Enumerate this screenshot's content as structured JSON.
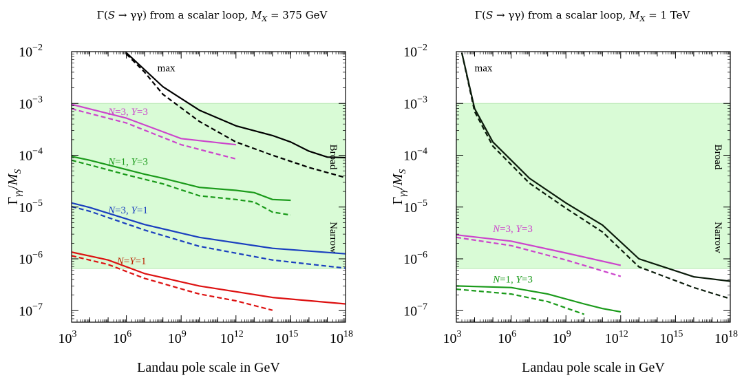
{
  "chart_data": [
    {
      "type": "line",
      "title": "Γ(S → γγ) from a scalar loop, M_X = 375 GeV",
      "title_parts": [
        "Γ(",
        "S",
        " → γγ) from a scalar loop, ",
        "M",
        "X",
        " = 375 GeV"
      ],
      "xlabel": "Landau pole scale in GeV",
      "ylabel": "Γγγ/MS",
      "x_scale": "log",
      "y_scale": "log",
      "xlim": [
        1000,
        1e+18
      ],
      "ylim": [
        6e-08,
        0.01
      ],
      "x_ticks": [
        {
          "base": "10",
          "exp": "3",
          "v": 3
        },
        {
          "base": "10",
          "exp": "6",
          "v": 6
        },
        {
          "base": "10",
          "exp": "9",
          "v": 9
        },
        {
          "base": "10",
          "exp": "12",
          "v": 12
        },
        {
          "base": "10",
          "exp": "15",
          "v": 15
        },
        {
          "base": "10",
          "exp": "18",
          "v": 18
        }
      ],
      "y_ticks": [
        {
          "base": "10",
          "exp": "−7",
          "v": -7
        },
        {
          "base": "10",
          "exp": "−6",
          "v": -6
        },
        {
          "base": "10",
          "exp": "−5",
          "v": -5
        },
        {
          "base": "10",
          "exp": "−4",
          "v": -4
        },
        {
          "base": "10",
          "exp": "−3",
          "v": -3
        },
        {
          "base": "10",
          "exp": "−2",
          "v": -2
        }
      ],
      "band": {
        "from": 6.5e-07,
        "to": 0.001,
        "color": "#d9fbd6"
      },
      "region_labels": [
        "Broad",
        "Narrow"
      ],
      "colors": {
        "black": "#000000",
        "magenta": "#cc44cc",
        "green": "#1a9a1a",
        "blue": "#1a3fbf",
        "red": "#dd1111",
        "darkred": "#aa2200"
      },
      "series": [
        {
          "name": "max (solid)",
          "color": "#000000",
          "style": "solid",
          "points": [
            [
              1000000.0,
              0.0095
            ],
            [
              100000000.0,
              0.0021
            ],
            [
              10000000000.0,
              0.00074
            ],
            [
              1000000000000.0,
              0.00037
            ],
            [
              100000000000000.0,
              0.00024
            ],
            [
              1000000000000000.0,
              0.00018
            ],
            [
              1e+16,
              0.00012
            ],
            [
              1e+17,
              9.2e-05
            ],
            [
              1e+18,
              9e-05
            ]
          ]
        },
        {
          "name": "max (dashed)",
          "color": "#000000",
          "style": "dashed",
          "points": [
            [
              1000000.0,
              0.009
            ],
            [
              10000000.0,
              0.004
            ],
            [
              100000000.0,
              0.0015
            ],
            [
              10000000000.0,
              0.00045
            ],
            [
              1000000000000.0,
              0.00018
            ],
            [
              100000000000000.0,
              0.0001
            ],
            [
              1e+16,
              5.8e-05
            ],
            [
              1e+18,
              3.7e-05
            ]
          ]
        },
        {
          "name": "N=3, Y=3 (solid)",
          "color": "#cc44cc",
          "style": "solid",
          "points": [
            [
              1000,
              0.00096
            ],
            [
              1000000.0,
              0.00052
            ],
            [
              1000000000.0,
              0.00021
            ],
            [
              1000000000000.0,
              0.00016
            ]
          ]
        },
        {
          "name": "N=3, Y=3 (dashed)",
          "color": "#cc44cc",
          "style": "dashed",
          "points": [
            [
              1000,
              0.00079
            ],
            [
              1000000.0,
              0.00042
            ],
            [
              1000000000.0,
              0.00016
            ],
            [
              1000000000000.0,
              8.5e-05
            ]
          ]
        },
        {
          "name": "N=1, Y=3 (solid)",
          "color": "#1a9a1a",
          "style": "solid",
          "points": [
            [
              1000,
              9.5e-05
            ],
            [
              10000.0,
              8e-05
            ],
            [
              10000000.0,
              4.3e-05
            ],
            [
              100000000.0,
              3.6e-05
            ],
            [
              10000000000.0,
              2.4e-05
            ],
            [
              1000000000000.0,
              2.1e-05
            ],
            [
              10000000000000.0,
              1.9e-05
            ],
            [
              100000000000000.0,
              1.4e-05
            ],
            [
              1000000000000000.0,
              1.35e-05
            ]
          ]
        },
        {
          "name": "N=1, Y=3 (dashed)",
          "color": "#1a9a1a",
          "style": "dashed",
          "points": [
            [
              1000,
              8e-05
            ],
            [
              10000.0,
              6.5e-05
            ],
            [
              1000000.0,
              4.2e-05
            ],
            [
              100000000.0,
              2.8e-05
            ],
            [
              10000000000.0,
              1.65e-05
            ],
            [
              1000000000000.0,
              1.4e-05
            ],
            [
              10000000000000.0,
              1.25e-05
            ],
            [
              100000000000000.0,
              8e-06
            ],
            [
              1000000000000000.0,
              7e-06
            ]
          ]
        },
        {
          "name": "N=3, Y=1 (solid)",
          "color": "#1a3fbf",
          "style": "solid",
          "points": [
            [
              1000,
              1.2e-05
            ],
            [
              10000.0,
              9.8e-06
            ],
            [
              10000000.0,
              4.6e-06
            ],
            [
              10000000000.0,
              2.6e-06
            ],
            [
              100000000000000.0,
              1.6e-06
            ],
            [
              1e+18,
              1.25e-06
            ]
          ]
        },
        {
          "name": "N=3, Y=1 (dashed)",
          "color": "#1a3fbf",
          "style": "dashed",
          "points": [
            [
              1000,
              1.02e-05
            ],
            [
              10000.0,
              8.3e-06
            ],
            [
              10000000.0,
              3.6e-06
            ],
            [
              10000000000.0,
              1.75e-06
            ],
            [
              100000000000000.0,
              9.5e-07
            ],
            [
              1e+18,
              6.6e-07
            ]
          ]
        },
        {
          "name": "N=Y=1 (solid)",
          "color": "#dd1111",
          "style": "solid",
          "points": [
            [
              1000,
              1.35e-06
            ],
            [
              100000.0,
              9.5e-07
            ],
            [
              10000000.0,
              5.2e-07
            ],
            [
              10000000000.0,
              3e-07
            ],
            [
              100000000000000.0,
              1.8e-07
            ],
            [
              1e+18,
              1.35e-07
            ]
          ]
        },
        {
          "name": "N=Y=1 (dashed)",
          "color": "#dd1111",
          "style": "dashed",
          "points": [
            [
              1000,
              1.15e-06
            ],
            [
              100000.0,
              7.8e-07
            ],
            [
              10000000.0,
              4.2e-07
            ],
            [
              10000000000.0,
              2.1e-07
            ],
            [
              1000000000000.0,
              1.55e-07
            ],
            [
              100000000000000.0,
              1.02e-07
            ]
          ]
        }
      ],
      "annotations": [
        {
          "parts": [
            "max"
          ],
          "color": "#000000",
          "x": 50000000.0,
          "y": 0.0042
        },
        {
          "parts": [
            "N",
            "=3, ",
            "Y",
            "=3"
          ],
          "color": "#cc44cc",
          "x": 100000.0,
          "y": 0.0006
        },
        {
          "parts": [
            "N",
            "=1, ",
            "Y",
            "=3"
          ],
          "color": "#1a9a1a",
          "x": 100000.0,
          "y": 6.5e-05
        },
        {
          "parts": [
            "N",
            "=3, ",
            "Y",
            "=1"
          ],
          "color": "#1a3fbf",
          "x": 100000.0,
          "y": 7.5e-06
        },
        {
          "parts": [
            "N",
            "=",
            "Y",
            "=1"
          ],
          "color": "#bb2200",
          "x": 300000.0,
          "y": 7.8e-07
        }
      ]
    },
    {
      "type": "line",
      "title": "Γ(S → γγ) from a scalar loop, M_X = 1 TeV",
      "title_parts": [
        "Γ(",
        "S",
        " → γγ) from a scalar loop, ",
        "M",
        "X",
        " = 1 TeV"
      ],
      "xlabel": "Landau pole scale in GeV",
      "ylabel": "Γγγ/MS",
      "x_scale": "log",
      "y_scale": "log",
      "xlim": [
        1000,
        1e+18
      ],
      "ylim": [
        6e-08,
        0.01
      ],
      "x_ticks": [
        {
          "base": "10",
          "exp": "3",
          "v": 3
        },
        {
          "base": "10",
          "exp": "6",
          "v": 6
        },
        {
          "base": "10",
          "exp": "9",
          "v": 9
        },
        {
          "base": "10",
          "exp": "12",
          "v": 12
        },
        {
          "base": "10",
          "exp": "15",
          "v": 15
        },
        {
          "base": "10",
          "exp": "18",
          "v": 18
        }
      ],
      "y_ticks": [
        {
          "base": "10",
          "exp": "−7",
          "v": -7
        },
        {
          "base": "10",
          "exp": "−6",
          "v": -6
        },
        {
          "base": "10",
          "exp": "−5",
          "v": -5
        },
        {
          "base": "10",
          "exp": "−4",
          "v": -4
        },
        {
          "base": "10",
          "exp": "−3",
          "v": -3
        },
        {
          "base": "10",
          "exp": "−2",
          "v": -2
        }
      ],
      "band": {
        "from": 6.5e-07,
        "to": 0.001,
        "color": "#d9fbd6"
      },
      "region_labels": [
        "Broad",
        "Narrow"
      ],
      "series": [
        {
          "name": "max (solid)",
          "color": "#0a1a0a",
          "style": "solid",
          "points": [
            [
              2000,
              0.0095
            ],
            [
              10000.0,
              0.0008
            ],
            [
              100000.0,
              0.00018
            ],
            [
              10000000.0,
              3.6e-05
            ],
            [
              1000000000.0,
              1.2e-05
            ],
            [
              100000000000.0,
              4.5e-06
            ],
            [
              10000000000000.0,
              1e-06
            ],
            [
              1e+16,
              4.5e-07
            ],
            [
              1e+18,
              3.7e-07
            ]
          ]
        },
        {
          "name": "max (dashed)",
          "color": "#0a1a0a",
          "style": "dashed",
          "points": [
            [
              2000,
              0.0095
            ],
            [
              10000.0,
              0.0007
            ],
            [
              100000.0,
              0.00015
            ],
            [
              10000000.0,
              2.9e-05
            ],
            [
              1000000000.0,
              9.5e-06
            ],
            [
              100000000000.0,
              3.3e-06
            ],
            [
              10000000000000.0,
              7e-07
            ],
            [
              1e+16,
              2.8e-07
            ],
            [
              1e+18,
              1.7e-07
            ]
          ]
        },
        {
          "name": "N=3, Y=3 (solid)",
          "color": "#cc44cc",
          "style": "solid",
          "points": [
            [
              1000,
              2.9e-06
            ],
            [
              1000000.0,
              2.2e-06
            ],
            [
              1000000000.0,
              1.3e-06
            ],
            [
              1000000000000.0,
              7.5e-07
            ]
          ]
        },
        {
          "name": "N=3, Y=3 (dashed)",
          "color": "#cc44cc",
          "style": "dashed",
          "points": [
            [
              1000,
              2.6e-06
            ],
            [
              1000000.0,
              1.8e-06
            ],
            [
              1000000000.0,
              9.5e-07
            ],
            [
              1000000000000.0,
              4.6e-07
            ]
          ]
        },
        {
          "name": "N=1, Y=3 (solid)",
          "color": "#1a9a1a",
          "style": "solid",
          "points": [
            [
              1000,
              3e-07
            ],
            [
              1000000.0,
              2.8e-07
            ],
            [
              100000000.0,
              2.1e-07
            ],
            [
              10000000000.0,
              1.35e-07
            ],
            [
              100000000000.0,
              1.1e-07
            ],
            [
              1000000000000.0,
              9.5e-08
            ]
          ]
        },
        {
          "name": "N=1, Y=3 (dashed)",
          "color": "#1a9a1a",
          "style": "dashed",
          "points": [
            [
              1000,
              2.6e-07
            ],
            [
              1000000.0,
              2.1e-07
            ],
            [
              100000000.0,
              1.5e-07
            ],
            [
              10000000000.0,
              8.5e-08
            ]
          ]
        }
      ],
      "annotations": [
        {
          "parts": [
            "max"
          ],
          "color": "#000000",
          "x": 10000.0,
          "y": 0.0042
        },
        {
          "parts": [
            "N",
            "=3, ",
            "Y",
            "=3"
          ],
          "color": "#cc44cc",
          "x": 100000.0,
          "y": 3.3e-06
        },
        {
          "parts": [
            "N",
            "=1, ",
            "Y",
            "=3"
          ],
          "color": "#1a9a1a",
          "x": 100000.0,
          "y": 3.5e-07
        }
      ]
    }
  ]
}
